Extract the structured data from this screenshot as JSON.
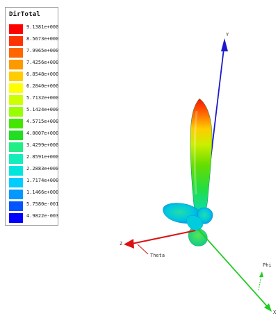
{
  "legend": {
    "title": "DirTotal",
    "entries": [
      {
        "value": "9.1381e+000",
        "color": "#ff0000"
      },
      {
        "value": "8.5673e+000",
        "color": "#ff3300"
      },
      {
        "value": "7.9965e+000",
        "color": "#ff6600"
      },
      {
        "value": "7.4256e+000",
        "color": "#ff9900"
      },
      {
        "value": "6.8548e+000",
        "color": "#ffcc00"
      },
      {
        "value": "6.2840e+000",
        "color": "#ffff00"
      },
      {
        "value": "5.7132e+000",
        "color": "#ccff00"
      },
      {
        "value": "5.1424e+000",
        "color": "#99ff00"
      },
      {
        "value": "4.5715e+000",
        "color": "#44e600"
      },
      {
        "value": "4.0007e+000",
        "color": "#22dd22"
      },
      {
        "value": "3.4299e+000",
        "color": "#22ee88"
      },
      {
        "value": "2.8591e+000",
        "color": "#11eebb"
      },
      {
        "value": "2.2883e+000",
        "color": "#00e6dd"
      },
      {
        "value": "1.7174e+000",
        "color": "#00ccff"
      },
      {
        "value": "1.1466e+000",
        "color": "#0099ff"
      },
      {
        "value": "5.7580e-001",
        "color": "#0055ff"
      },
      {
        "value": "4.9822e-003",
        "color": "#0000ff"
      }
    ]
  },
  "axes": {
    "y_label": "Y",
    "z_label": "Z",
    "theta_label": "Theta",
    "phi_label": "Phi",
    "x_label": "X",
    "y_color": "#1a1acc",
    "z_color": "#dd1111",
    "x_color": "#22cc22"
  }
}
